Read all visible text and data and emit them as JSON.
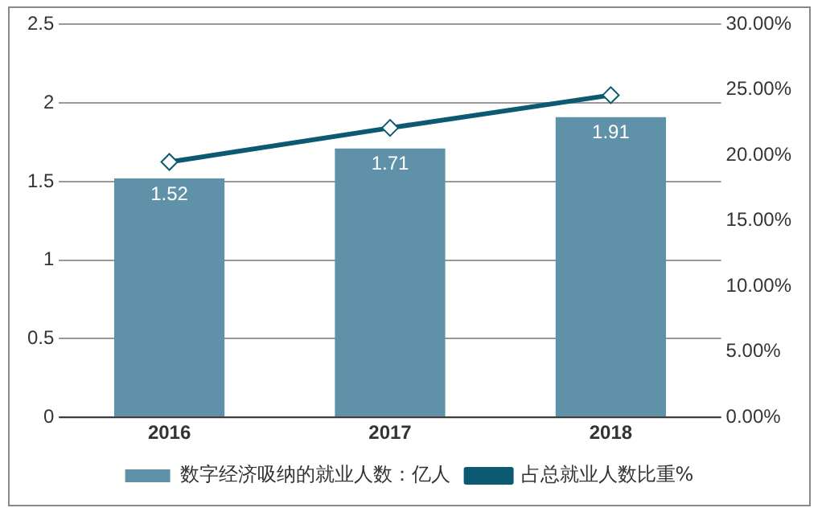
{
  "chart_data": {
    "type": "bar",
    "categories": [
      "2016",
      "2017",
      "2018"
    ],
    "series": [
      {
        "name": "数字经济吸纳的就业人数：亿人",
        "color": "#5f92a8",
        "values": [
          1.52,
          1.71,
          1.91
        ],
        "value_labels": [
          "1.52",
          "1.71",
          "1.91"
        ]
      },
      {
        "name": "占总就业人数比重%",
        "type": "line",
        "axis": "y2",
        "color": "#0b5a72",
        "values": [
          19.5,
          22.1,
          24.6
        ],
        "marker": "diamond"
      }
    ],
    "ylim": [
      0,
      2.5
    ],
    "yticks": [
      0,
      0.5,
      1,
      1.5,
      2,
      2.5
    ],
    "y2lim": [
      0,
      30
    ],
    "y2ticks": [
      {
        "value": 0,
        "label": "0.00%"
      },
      {
        "value": 5,
        "label": "5.00%"
      },
      {
        "value": 10,
        "label": "10.00%"
      },
      {
        "value": 15,
        "label": "15.00%"
      },
      {
        "value": 20,
        "label": "20.00%"
      },
      {
        "value": 25,
        "label": "25.00%"
      },
      {
        "value": 30,
        "label": "30.00%"
      }
    ],
    "grid": "y",
    "legend": "bottom"
  }
}
